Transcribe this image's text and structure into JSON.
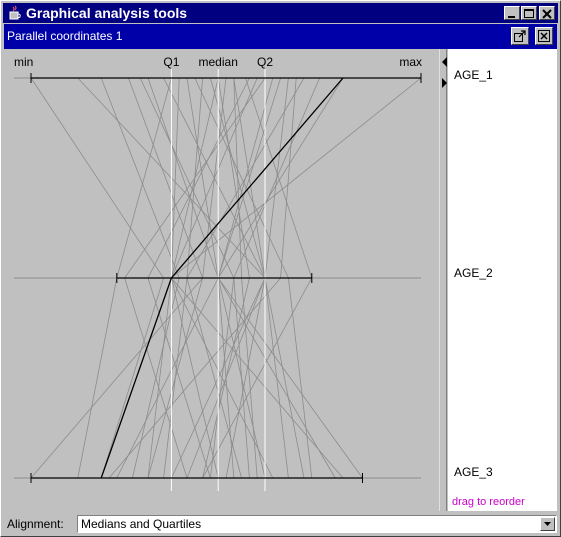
{
  "window": {
    "title": "Graphical analysis tools",
    "icon": "java-cup-icon",
    "buttons": [
      "minimize-icon",
      "maximize-icon",
      "close-icon"
    ]
  },
  "frame": {
    "title": "Parallel coordinates 1",
    "buttons": [
      "float-icon",
      "close-icon"
    ]
  },
  "plot": {
    "top_labels": {
      "min": "min",
      "q1": "Q1",
      "median": "median",
      "q2": "Q2",
      "max": "max"
    },
    "axes": [
      {
        "name": "AGE_1",
        "range": [
          0.0,
          1.0
        ],
        "q1": 0.36,
        "median": 0.48,
        "q3": 0.6
      },
      {
        "name": "AGE_2",
        "range": [
          0.22,
          0.72
        ],
        "q1": 0.36,
        "median": 0.48,
        "q3": 0.6
      },
      {
        "name": "AGE_3",
        "range": [
          0.0,
          0.85
        ],
        "q1": 0.36,
        "median": 0.48,
        "q3": 0.6
      }
    ],
    "records": [
      [
        0.0,
        0.34,
        0.18
      ],
      [
        0.18,
        0.38,
        0.26
      ],
      [
        0.25,
        0.44,
        0.3
      ],
      [
        0.36,
        0.22,
        0.12
      ],
      [
        0.38,
        0.36,
        0.48
      ],
      [
        0.4,
        0.48,
        0.52
      ],
      [
        0.46,
        0.6,
        0.36
      ],
      [
        0.48,
        0.36,
        0.62
      ],
      [
        0.5,
        0.44,
        0.0
      ],
      [
        0.52,
        0.6,
        0.7
      ],
      [
        0.55,
        0.72,
        0.44
      ],
      [
        0.58,
        0.36,
        0.8
      ],
      [
        0.62,
        0.48,
        0.22
      ],
      [
        0.64,
        0.48,
        0.6
      ],
      [
        0.66,
        0.6,
        0.4
      ],
      [
        0.7,
        0.4,
        0.54
      ],
      [
        0.74,
        0.52,
        0.46
      ],
      [
        0.8,
        0.48,
        0.85
      ],
      [
        1.0,
        0.36,
        0.3
      ],
      [
        0.12,
        0.6,
        0.66
      ],
      [
        0.28,
        0.52,
        0.56
      ],
      [
        0.44,
        0.4,
        0.34
      ],
      [
        0.6,
        0.24,
        0.4
      ],
      [
        0.52,
        0.54,
        0.58
      ],
      [
        0.34,
        0.6,
        0.5
      ],
      [
        0.42,
        0.66,
        0.72
      ],
      [
        0.56,
        0.3,
        0.46
      ],
      [
        0.68,
        0.64,
        0.2
      ],
      [
        0.3,
        0.48,
        0.78
      ],
      [
        0.48,
        0.56,
        0.44
      ]
    ],
    "highlighted": [
      0.8,
      0.36,
      0.18
    ],
    "colors": {
      "line": "#8c8c8c",
      "highlight": "#000000",
      "quartile": "#ffffff",
      "axis": "#000000"
    }
  },
  "side": {
    "hint": "drag to reorder"
  },
  "alignment": {
    "label": "Alignment:",
    "value": "Medians and Quartiles"
  }
}
